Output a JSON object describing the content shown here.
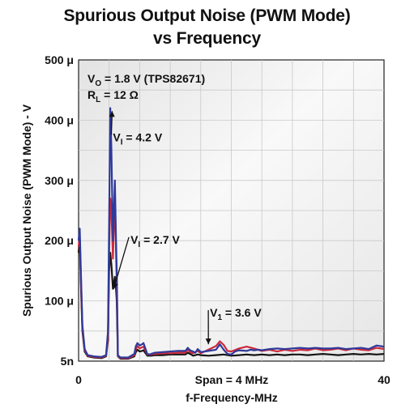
{
  "chart_data": {
    "type": "line",
    "title_line1": "Spurious Output Noise (PWM Mode)",
    "title_line2": "vs Frequency",
    "ylabel": "Spurious Output Noise (PWM Mode) - V",
    "xlabel_line1": "Span = 4 MHz",
    "xlabel_line2": "f-Frequency-MHz",
    "xlim": [
      0,
      40
    ],
    "ylim": [
      5e-09,
      0.0005
    ],
    "x_ticks": [
      {
        "value": 0,
        "label": "0"
      },
      {
        "value": 40,
        "label": "40"
      }
    ],
    "y_ticks": [
      {
        "value": 5e-09,
        "label": "5n"
      },
      {
        "value": 0.0001,
        "label": "100 μ"
      },
      {
        "value": 0.0002,
        "label": "200 μ"
      },
      {
        "value": 0.0003,
        "label": "300 μ"
      },
      {
        "value": 0.0004,
        "label": "400 μ"
      },
      {
        "value": 0.0005,
        "label": "500 μ"
      }
    ],
    "grid": true,
    "conditions": [
      "V",
      "O",
      " = 1.8 V (TPS82671)",
      "R",
      "L",
      " = 12 Ω"
    ],
    "annotations": [
      {
        "main": "V",
        "sub": "I",
        "rest": " = 4.2 V",
        "x": 4.5,
        "y": 0.000365,
        "target_x": 4.4,
        "target_y": 0.000415
      },
      {
        "main": "V",
        "sub": "I",
        "rest": " = 2.7 V",
        "x": 6.8,
        "y": 0.000195,
        "target_x": 4.6,
        "target_y": 0.00012
      },
      {
        "main": "V",
        "sub": "1",
        "rest": " = 3.6 V",
        "x": 17.2,
        "y": 7.4e-05,
        "target_x": 17.0,
        "target_y": 2.8e-05
      }
    ],
    "series": [
      {
        "name": "V_I = 4.2 V",
        "color": "#2f3a9a",
        "x": [
          0,
          0.15,
          0.3,
          0.5,
          0.8,
          1.2,
          2.0,
          3.0,
          3.6,
          3.85,
          4.0,
          4.15,
          4.3,
          4.5,
          4.75,
          4.9,
          5.0,
          5.15,
          5.3,
          5.5,
          6.5,
          7.3,
          7.5,
          7.7,
          8.0,
          8.3,
          8.5,
          9.0,
          9.3,
          9.5,
          10.0,
          11.0,
          12.0,
          13.0,
          14.0,
          14.3,
          14.6,
          15.0,
          15.3,
          15.6,
          16.0,
          17.0,
          18.0,
          18.5,
          19.0,
          19.5,
          20.0,
          20.5,
          21.0,
          22.0,
          22.5,
          23.0,
          23.5,
          24.0,
          25.0,
          26.0,
          27.0,
          28.0,
          29.0,
          30.0,
          31.0,
          32.0,
          33.0,
          34.0,
          35.0,
          36.0,
          37.0,
          38.0,
          39.0,
          40.0
        ],
        "y": [
          0.0002,
          0.00022,
          0.00015,
          6e-05,
          2e-05,
          1e-05,
          8e-06,
          7e-06,
          1e-05,
          5e-05,
          0.00023,
          0.00042,
          0.00035,
          0.0002,
          0.0003,
          0.0002,
          0.00015,
          1e-05,
          8e-06,
          6e-06,
          6e-06,
          1.2e-05,
          2.5e-05,
          3e-05,
          2.6e-05,
          2.8e-05,
          3e-05,
          1.2e-05,
          1.1e-05,
          1.2e-05,
          1.4e-05,
          1.5e-05,
          1.6e-05,
          1.7e-05,
          1.7e-05,
          2.2e-05,
          1.8e-05,
          1.6e-05,
          1.4e-05,
          2e-05,
          1.5e-05,
          1.7e-05,
          1.9e-05,
          2.8e-05,
          1.9e-05,
          1.2e-05,
          1.1e-05,
          1.6e-05,
          1.8e-05,
          1.7e-05,
          1.9e-05,
          1.8e-05,
          1.9e-05,
          1.8e-05,
          2e-05,
          2.1e-05,
          2e-05,
          2.1e-05,
          2.2e-05,
          2.1e-05,
          2.2e-05,
          2.1e-05,
          2.1e-05,
          2.2e-05,
          2e-05,
          2.1e-05,
          2.2e-05,
          2e-05,
          2.6e-05,
          2.4e-05
        ]
      },
      {
        "name": "V_I = 2.7 V",
        "color": "#cc2a3c",
        "x": [
          0,
          0.15,
          0.3,
          0.5,
          0.8,
          1.2,
          2.0,
          3.0,
          3.6,
          3.85,
          4.0,
          4.15,
          4.3,
          4.5,
          4.75,
          4.9,
          5.0,
          5.15,
          5.3,
          5.5,
          6.5,
          7.3,
          7.5,
          7.7,
          8.0,
          8.3,
          8.5,
          9.0,
          9.5,
          10.0,
          11.0,
          12.0,
          13.0,
          14.0,
          14.3,
          14.6,
          15.0,
          15.6,
          16.0,
          17.0,
          18.0,
          18.5,
          19.0,
          19.5,
          20.0,
          21.0,
          22.0,
          23.0,
          24.0,
          25.0,
          26.0,
          27.0,
          28.0,
          29.0,
          30.0,
          31.0,
          32.0,
          33.0,
          34.0,
          35.0,
          36.0,
          37.0,
          38.0,
          39.0,
          40.0
        ],
        "y": [
          0.00019,
          0.000205,
          0.00014,
          5.5e-05,
          1.8e-05,
          9e-06,
          7e-06,
          6e-06,
          9e-06,
          4e-05,
          0.00018,
          0.00027,
          0.00025,
          0.00017,
          0.00028,
          0.00018,
          0.00013,
          9e-06,
          7e-06,
          5e-06,
          5e-06,
          1e-05,
          2e-05,
          2.5e-05,
          2.1e-05,
          2.3e-05,
          2.4e-05,
          1.1e-05,
          1.1e-05,
          1.2e-05,
          1.3e-05,
          1.3e-05,
          1.4e-05,
          1.4e-05,
          1.9e-05,
          1.5e-05,
          1.3e-05,
          1.7e-05,
          1.3e-05,
          1.9e-05,
          2.5e-05,
          3.3e-05,
          2.7e-05,
          1.7e-05,
          1.6e-05,
          2.1e-05,
          2.4e-05,
          2.1e-05,
          1.7e-05,
          1.9e-05,
          1.6e-05,
          1.9e-05,
          1.7e-05,
          1.9e-05,
          1.8e-05,
          2.1e-05,
          1.8e-05,
          1.9e-05,
          2.1e-05,
          1.8e-05,
          2.1e-05,
          1.9e-05,
          1.8e-05,
          2.2e-05,
          2e-05
        ]
      },
      {
        "name": "V_1 = 3.6 V",
        "color": "#151515",
        "x": [
          0,
          0.15,
          0.3,
          0.5,
          0.8,
          1.2,
          2.0,
          3.0,
          3.6,
          3.85,
          4.0,
          4.15,
          4.3,
          4.5,
          4.75,
          4.9,
          5.0,
          5.15,
          5.3,
          5.5,
          6.5,
          7.3,
          7.5,
          7.7,
          8.0,
          8.3,
          8.5,
          9.0,
          9.5,
          10.0,
          11.0,
          12.0,
          13.0,
          14.0,
          14.3,
          14.6,
          15.0,
          15.6,
          16.0,
          17.0,
          18.0,
          19.0,
          20.0,
          21.0,
          22.0,
          23.0,
          24.0,
          25.0,
          26.0,
          27.0,
          28.0,
          29.0,
          30.0,
          31.0,
          32.0,
          33.0,
          34.0,
          35.0,
          36.0,
          37.0,
          38.0,
          39.0,
          40.0
        ],
        "y": [
          0.00018,
          0.0002,
          0.00013,
          5e-05,
          1.6e-05,
          8e-06,
          6e-06,
          5e-06,
          8e-06,
          3.5e-05,
          0.00015,
          0.00018,
          0.00016,
          0.00012,
          0.00014,
          0.00012,
          0.0001,
          8e-06,
          6e-06,
          4e-06,
          4e-06,
          8e-06,
          1.5e-05,
          1.9e-05,
          1.6e-05,
          1.7e-05,
          1.8e-05,
          9e-06,
          9e-06,
          1e-05,
          1e-05,
          1.1e-05,
          1.1e-05,
          1.1e-05,
          1.4e-05,
          1.2e-05,
          9e-06,
          1.1e-05,
          1e-05,
          9e-06,
          1e-05,
          1.1e-05,
          9e-06,
          1e-05,
          1.1e-05,
          1e-05,
          1.1e-05,
          1e-05,
          1.1e-05,
          1e-05,
          1.1e-05,
          1.1e-05,
          1e-05,
          1.1e-05,
          1.2e-05,
          1.1e-05,
          1e-05,
          1.1e-05,
          1.2e-05,
          1.1e-05,
          1.2e-05,
          1.1e-05,
          1.2e-05
        ]
      }
    ]
  }
}
